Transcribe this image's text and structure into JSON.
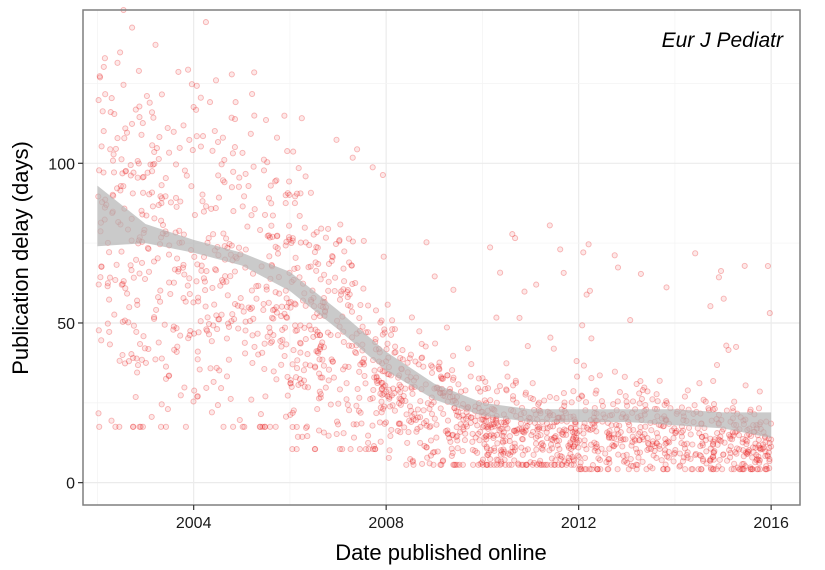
{
  "chart_data": {
    "type": "scatter",
    "title": "",
    "annotation": "Eur J Pediatr",
    "xlabel": "Date published online",
    "ylabel": "Publication delay (days)",
    "xlim": [
      2001.7,
      2016.6
    ],
    "ylim": [
      -7,
      148
    ],
    "x_ticks": [
      2004,
      2008,
      2012,
      2016
    ],
    "x_tick_labels": [
      "2004",
      "2008",
      "2012",
      "2016"
    ],
    "y_ticks": [
      0,
      50,
      100
    ],
    "y_tick_labels": [
      "0",
      "50",
      "100"
    ],
    "grid": true,
    "point_color": "#e8191a",
    "ribbon_color": "#b3b3b3",
    "points_note": "approx. 1900 semi-transparent red points; density summarized by period",
    "point_clusters": [
      {
        "period": [
          2002.0,
          2004.0
        ],
        "n": 260,
        "typical_delay": [
          25,
          110
        ]
      },
      {
        "period": [
          2004.0,
          2006.0
        ],
        "n": 260,
        "typical_delay": [
          25,
          100
        ]
      },
      {
        "period": [
          2006.0,
          2008.0
        ],
        "n": 300,
        "typical_delay": [
          15,
          120
        ]
      },
      {
        "period": [
          2008.0,
          2010.0
        ],
        "n": 260,
        "typical_delay": [
          8,
          60
        ]
      },
      {
        "period": [
          2010.0,
          2012.0
        ],
        "n": 320,
        "typical_delay": [
          8,
          45
        ]
      },
      {
        "period": [
          2012.0,
          2016.0
        ],
        "n": 500,
        "typical_delay": [
          6,
          40
        ]
      }
    ],
    "smooth": {
      "x": [
        2002.0,
        2003.0,
        2004.0,
        2005.0,
        2006.0,
        2007.0,
        2008.0,
        2009.0,
        2010.0,
        2011.0,
        2012.0,
        2013.0,
        2014.0,
        2015.0,
        2016.0
      ],
      "fit": [
        80,
        78,
        74,
        70,
        63,
        51,
        38,
        28,
        23,
        21,
        21,
        21,
        20,
        19,
        18
      ],
      "lower": [
        74,
        75,
        72,
        68,
        60,
        48,
        35,
        26,
        21,
        19,
        19,
        19,
        18,
        17,
        14
      ],
      "upper": [
        93,
        81,
        76,
        72,
        66,
        54,
        41,
        31,
        25,
        23,
        23,
        23,
        23,
        22,
        22
      ]
    }
  }
}
